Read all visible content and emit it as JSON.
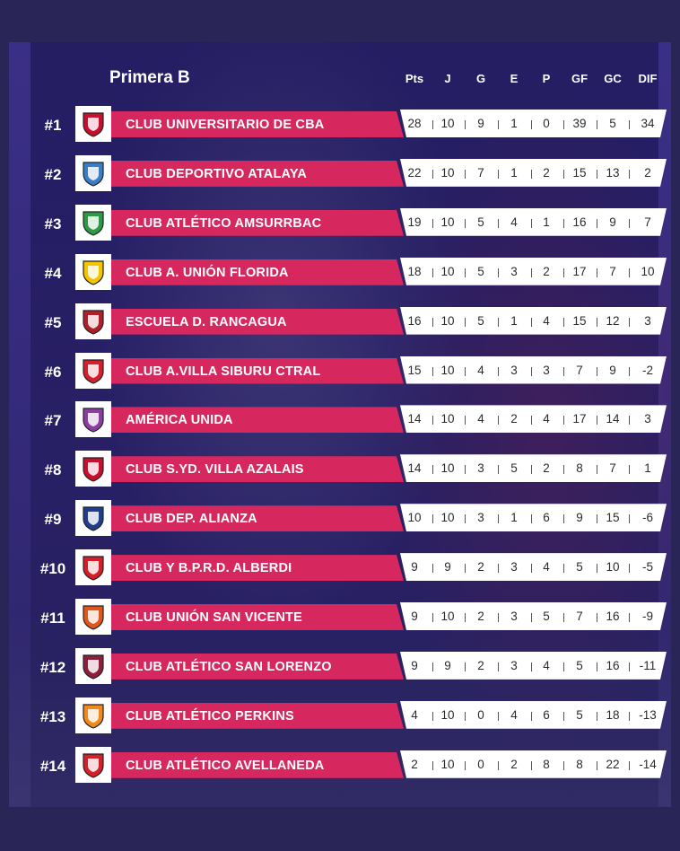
{
  "header": {
    "title": "Primera B",
    "columns": [
      "Pts",
      "J",
      "G",
      "E",
      "P",
      "GF",
      "GC",
      "DIF"
    ]
  },
  "rows": [
    {
      "rank": "#1",
      "name": "CLUB UNIVERSITARIO DE CBA",
      "stats": [
        "28",
        "10",
        "9",
        "1",
        "0",
        "39",
        "5",
        "34"
      ],
      "crest_color": "#c8102e"
    },
    {
      "rank": "#2",
      "name": "CLUB DEPORTIVO ATALAYA",
      "stats": [
        "22",
        "10",
        "7",
        "1",
        "2",
        "15",
        "13",
        "2"
      ],
      "crest_color": "#3a7fc4"
    },
    {
      "rank": "#3",
      "name": "CLUB ATLÉTICO AMSURRBAC",
      "stats": [
        "19",
        "10",
        "5",
        "4",
        "1",
        "16",
        "9",
        "7"
      ],
      "crest_color": "#2e9a48"
    },
    {
      "rank": "#4",
      "name": "CLUB A. UNIÓN FLORIDA",
      "stats": [
        "18",
        "10",
        "5",
        "3",
        "2",
        "17",
        "7",
        "10"
      ],
      "crest_color": "#f2c500"
    },
    {
      "rank": "#5",
      "name": "ESCUELA D. RANCAGUA",
      "stats": [
        "16",
        "10",
        "5",
        "1",
        "4",
        "15",
        "12",
        "3"
      ],
      "crest_color": "#b01e2a"
    },
    {
      "rank": "#6",
      "name": "CLUB A.VILLA SIBURU CTRAL",
      "stats": [
        "15",
        "10",
        "4",
        "3",
        "3",
        "7",
        "9",
        "-2"
      ],
      "crest_color": "#d61f2c"
    },
    {
      "rank": "#7",
      "name": "AMÉRICA UNIDA",
      "stats": [
        "14",
        "10",
        "4",
        "2",
        "4",
        "17",
        "14",
        "3"
      ],
      "crest_color": "#8a3fa0"
    },
    {
      "rank": "#8",
      "name": "CLUB S.YD. VILLA AZALAIS",
      "stats": [
        "14",
        "10",
        "3",
        "5",
        "2",
        "8",
        "7",
        "1"
      ],
      "crest_color": "#c8102e"
    },
    {
      "rank": "#9",
      "name": "CLUB DEP. ALIANZA",
      "stats": [
        "10",
        "10",
        "3",
        "1",
        "6",
        "9",
        "15",
        "-6"
      ],
      "crest_color": "#1f3f8c"
    },
    {
      "rank": "#10",
      "name": "CLUB Y B.P.R.D. ALBERDI",
      "stats": [
        "9",
        "9",
        "2",
        "3",
        "4",
        "5",
        "10",
        "-5"
      ],
      "crest_color": "#d41e2a"
    },
    {
      "rank": "#11",
      "name": "CLUB UNIÓN SAN VICENTE",
      "stats": [
        "9",
        "10",
        "2",
        "3",
        "5",
        "7",
        "16",
        "-9"
      ],
      "crest_color": "#e0561c"
    },
    {
      "rank": "#12",
      "name": "CLUB ATLÉTICO SAN LORENZO",
      "stats": [
        "9",
        "9",
        "2",
        "3",
        "4",
        "5",
        "16",
        "-11"
      ],
      "crest_color": "#8c1f3c"
    },
    {
      "rank": "#13",
      "name": "CLUB ATLÉTICO PERKINS",
      "stats": [
        "4",
        "10",
        "0",
        "4",
        "6",
        "5",
        "18",
        "-13"
      ],
      "crest_color": "#f08a1c"
    },
    {
      "rank": "#14",
      "name": "CLUB ATLÉTICO AVELLANEDA",
      "stats": [
        "2",
        "10",
        "0",
        "2",
        "8",
        "8",
        "22",
        "-14"
      ],
      "crest_color": "#d4202a"
    }
  ]
}
